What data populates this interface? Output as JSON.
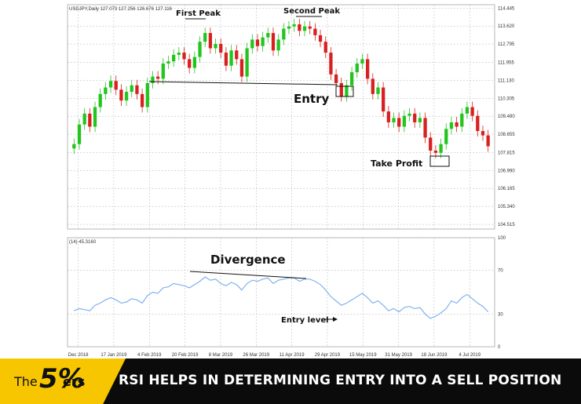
{
  "chart_data": [
    {
      "type": "candlestick",
      "header_text": "USDJPY,Daily 127.073 127.256 126.676 127.116",
      "ylim": [
        104.3,
        114.6
      ],
      "y_ticks": [
        "114.445",
        "113.620",
        "112.795",
        "111.955",
        "111.130",
        "110.305",
        "109.480",
        "108.655",
        "107.815",
        "106.990",
        "106.165",
        "105.340",
        "104.515"
      ],
      "x_tick_labels": [
        "Dec 2018",
        "17 Jan 2019",
        "4 Feb 2019",
        "20 Feb 2019",
        "8 Mar 2019",
        "26 Mar 2019",
        "11 Apr 2019",
        "29 Apr 2019",
        "15 May 2019",
        "31 May 2019",
        "18 Jun 2019",
        "4 Jul 2019"
      ],
      "closes": [
        108.2,
        109.1,
        109.6,
        109.0,
        109.9,
        110.5,
        110.8,
        111.1,
        110.7,
        110.2,
        110.6,
        110.9,
        110.5,
        109.9,
        111.0,
        111.3,
        111.2,
        111.9,
        112.0,
        112.3,
        112.4,
        112.1,
        111.7,
        112.2,
        112.9,
        113.3,
        112.6,
        112.8,
        112.4,
        111.8,
        112.5,
        112.1,
        111.3,
        112.6,
        113.0,
        112.7,
        113.1,
        113.3,
        112.5,
        113.0,
        113.5,
        113.6,
        113.7,
        113.4,
        113.6,
        113.5,
        113.2,
        112.9,
        112.4,
        111.4,
        111.0,
        110.4,
        110.9,
        111.5,
        111.9,
        112.1,
        111.2,
        110.5,
        110.8,
        109.7,
        109.2,
        109.4,
        109.0,
        109.5,
        109.6,
        109.2,
        109.4,
        108.5,
        107.9,
        107.8,
        108.2,
        108.9,
        109.2,
        109.0,
        109.6,
        109.9,
        109.5,
        108.8,
        108.6,
        108.1
      ],
      "annotations": {
        "first_peak": "First Peak",
        "second_peak": "Second Peak",
        "entry": "Entry",
        "take_profit": "Take Profit"
      }
    },
    {
      "type": "line",
      "header_text": "(14) 45.3160",
      "ylim": [
        0,
        100
      ],
      "y_ticks": [
        "100",
        "70",
        "30",
        "0"
      ],
      "values": [
        33,
        35,
        34,
        33,
        38,
        40,
        43,
        45,
        43,
        40,
        41,
        44,
        43,
        40,
        47,
        50,
        49,
        54,
        55,
        58,
        57,
        56,
        54,
        57,
        60,
        64,
        61,
        62,
        58,
        56,
        59,
        57,
        52,
        58,
        61,
        60,
        62,
        63,
        58,
        61,
        62,
        63,
        63,
        60,
        62,
        62,
        60,
        57,
        52,
        46,
        42,
        38,
        40,
        43,
        46,
        49,
        45,
        40,
        42,
        38,
        33,
        35,
        32,
        36,
        37,
        35,
        36,
        30,
        26,
        28,
        31,
        35,
        42,
        40,
        45,
        48,
        44,
        40,
        37,
        32
      ],
      "annotations": {
        "divergence": "Divergence",
        "entry_level": "Entry level"
      }
    }
  ],
  "colors": {
    "up": "#22c51e",
    "down": "#d92020",
    "rsi_line": "#7fb2ee",
    "grid": "#b5b5b5",
    "banner_bg": "#0b0b0b",
    "brand_yellow": "#f7c600"
  },
  "banner": {
    "brand_the": "The",
    "brand_5": "5%",
    "brand_ers": "ers",
    "caption": "RSI HELPS IN DETERMINING ENTRY INTO A SELL POSITION"
  }
}
